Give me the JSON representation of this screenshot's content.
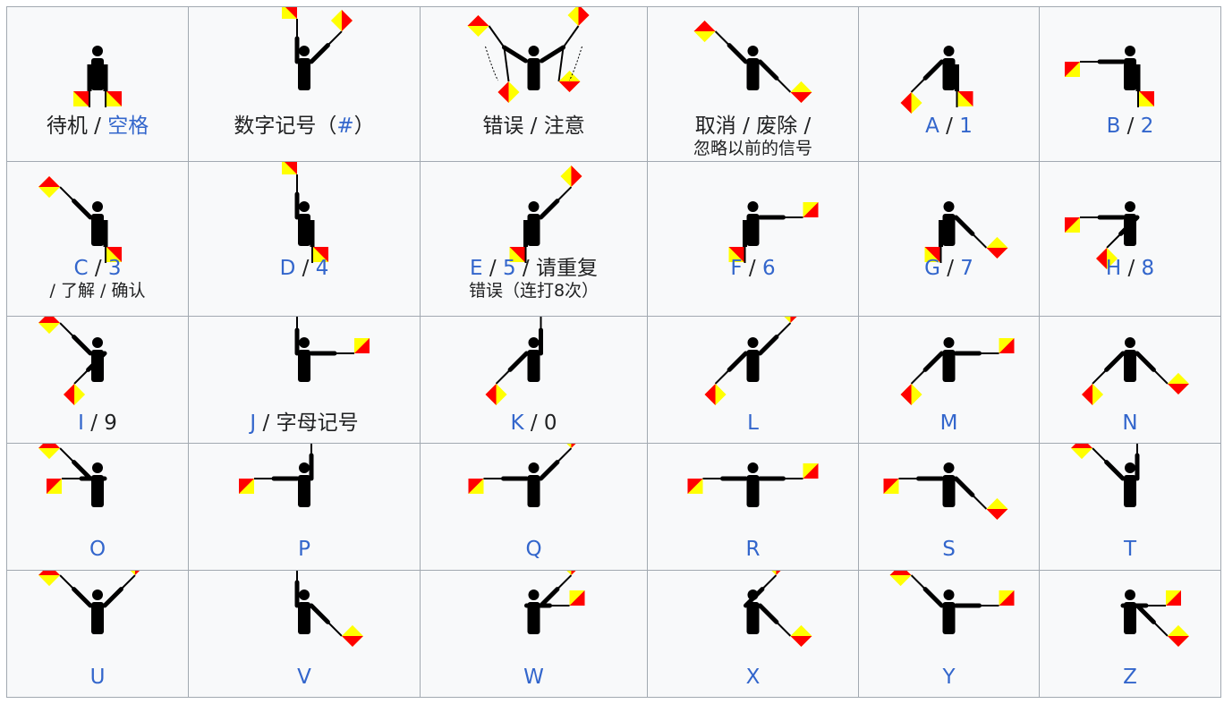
{
  "colors": {
    "flag_red": "#ff0000",
    "flag_yellow": "#ffff00",
    "figure": "#000000",
    "link": "#3366cc",
    "text": "#202122",
    "border": "#a2a9b1",
    "cell_bg": "#f8f9fa"
  },
  "rows": [
    [
      {
        "id": "rest",
        "arms": [
          "rest",
          "rest"
        ],
        "line1": [
          {
            "t": "待机",
            "link": false
          },
          {
            "t": " / ",
            "link": false
          },
          {
            "t": "空格",
            "link": true
          }
        ]
      },
      {
        "id": "numerals",
        "arms": [
          "up",
          "ne"
        ],
        "line1": [
          {
            "t": "数字记号（",
            "link": false
          },
          {
            "t": "#",
            "link": true
          },
          {
            "t": "）",
            "link": false
          }
        ]
      },
      {
        "id": "error",
        "arms": [
          "error",
          "error"
        ],
        "line1": [
          {
            "t": "错误",
            "link": false
          },
          {
            "t": " / ",
            "link": false
          },
          {
            "t": "注意",
            "link": false
          }
        ]
      },
      {
        "id": "cancel",
        "arms": [
          "nw",
          "se"
        ],
        "line1": [
          {
            "t": "取消",
            "link": false
          },
          {
            "t": " / ",
            "link": false
          },
          {
            "t": "废除",
            "link": false
          },
          {
            "t": " /",
            "link": false
          }
        ],
        "line2": [
          {
            "t": "忽略以前的信号",
            "link": false
          }
        ]
      },
      {
        "id": "A",
        "arms": [
          "sw",
          "down"
        ],
        "line1": [
          {
            "t": "A",
            "link": true
          },
          {
            "t": " / ",
            "link": false
          },
          {
            "t": "1",
            "link": true
          }
        ]
      },
      {
        "id": "B",
        "arms": [
          "w",
          "down"
        ],
        "line1": [
          {
            "t": "B",
            "link": true
          },
          {
            "t": " / ",
            "link": false
          },
          {
            "t": "2",
            "link": true
          }
        ]
      }
    ],
    [
      {
        "id": "C",
        "arms": [
          "nw",
          "down"
        ],
        "line1": [
          {
            "t": "C",
            "link": true
          },
          {
            "t": " / ",
            "link": false
          },
          {
            "t": "3",
            "link": true
          }
        ],
        "line2": [
          {
            "t": " / 了解 / 确认",
            "link": false
          }
        ]
      },
      {
        "id": "D",
        "arms": [
          "up",
          "down"
        ],
        "line1": [
          {
            "t": "D",
            "link": true
          },
          {
            "t": " / ",
            "link": false
          },
          {
            "t": "4",
            "link": true
          }
        ]
      },
      {
        "id": "E",
        "arms": [
          "down",
          "ne"
        ],
        "line1": [
          {
            "t": "E",
            "link": true
          },
          {
            "t": " / ",
            "link": false
          },
          {
            "t": "5",
            "link": true
          },
          {
            "t": " / 请重复",
            "link": false
          }
        ],
        "line2": [
          {
            "t": "错误（连打8次）",
            "link": false
          }
        ]
      },
      {
        "id": "F",
        "arms": [
          "down",
          "e"
        ],
        "line1": [
          {
            "t": "F",
            "link": true
          },
          {
            "t": " / ",
            "link": false
          },
          {
            "t": "6",
            "link": true
          }
        ]
      },
      {
        "id": "G",
        "arms": [
          "down",
          "se"
        ],
        "line1": [
          {
            "t": "G",
            "link": true
          },
          {
            "t": " / ",
            "link": false
          },
          {
            "t": "7",
            "link": true
          }
        ]
      },
      {
        "id": "H",
        "arms": [
          "w",
          "sw"
        ],
        "line1": [
          {
            "t": "H",
            "link": true
          },
          {
            "t": " / ",
            "link": false
          },
          {
            "t": "8",
            "link": true
          }
        ]
      }
    ],
    [
      {
        "id": "I",
        "arms": [
          "nw",
          "sw"
        ],
        "line1": [
          {
            "t": "I",
            "link": true
          },
          {
            "t": " / ",
            "link": false
          },
          {
            "t": "9",
            "link": false
          }
        ]
      },
      {
        "id": "J",
        "arms": [
          "up",
          "e"
        ],
        "line1": [
          {
            "t": "J",
            "link": true
          },
          {
            "t": " / 字母记号",
            "link": false
          }
        ]
      },
      {
        "id": "K",
        "arms": [
          "sw",
          "up"
        ],
        "line1": [
          {
            "t": "K",
            "link": true
          },
          {
            "t": " / ",
            "link": false
          },
          {
            "t": "0",
            "link": false
          }
        ]
      },
      {
        "id": "L",
        "arms": [
          "sw",
          "ne"
        ],
        "line1": [
          {
            "t": "L",
            "link": true
          }
        ]
      },
      {
        "id": "M",
        "arms": [
          "sw",
          "e"
        ],
        "line1": [
          {
            "t": "M",
            "link": true
          }
        ]
      },
      {
        "id": "N",
        "arms": [
          "sw",
          "se"
        ],
        "line1": [
          {
            "t": "N",
            "link": true
          }
        ]
      }
    ],
    [
      {
        "id": "O",
        "arms": [
          "nw",
          "w"
        ],
        "line1": [
          {
            "t": "O",
            "link": true
          }
        ]
      },
      {
        "id": "P",
        "arms": [
          "w",
          "up"
        ],
        "line1": [
          {
            "t": "P",
            "link": true
          }
        ]
      },
      {
        "id": "Q",
        "arms": [
          "w",
          "ne"
        ],
        "line1": [
          {
            "t": "Q",
            "link": true
          }
        ]
      },
      {
        "id": "R",
        "arms": [
          "w",
          "e"
        ],
        "line1": [
          {
            "t": "R",
            "link": true
          }
        ]
      },
      {
        "id": "S",
        "arms": [
          "w",
          "se"
        ],
        "line1": [
          {
            "t": "S",
            "link": true
          }
        ]
      },
      {
        "id": "T",
        "arms": [
          "nw",
          "up"
        ],
        "line1": [
          {
            "t": "T",
            "link": true
          }
        ]
      }
    ],
    [
      {
        "id": "U",
        "arms": [
          "nw",
          "ne"
        ],
        "line1": [
          {
            "t": "U",
            "link": true
          }
        ]
      },
      {
        "id": "V",
        "arms": [
          "up",
          "se"
        ],
        "line1": [
          {
            "t": "V",
            "link": true
          }
        ]
      },
      {
        "id": "W",
        "arms": [
          "e",
          "ne"
        ],
        "line1": [
          {
            "t": "W",
            "link": true
          }
        ]
      },
      {
        "id": "X",
        "arms": [
          "ne",
          "se"
        ],
        "line1": [
          {
            "t": "X",
            "link": true
          }
        ]
      },
      {
        "id": "Y",
        "arms": [
          "nw",
          "e"
        ],
        "line1": [
          {
            "t": "Y",
            "link": true
          }
        ]
      },
      {
        "id": "Z",
        "arms": [
          "e",
          "se"
        ],
        "line1": [
          {
            "t": "Z",
            "link": true
          }
        ]
      }
    ]
  ]
}
